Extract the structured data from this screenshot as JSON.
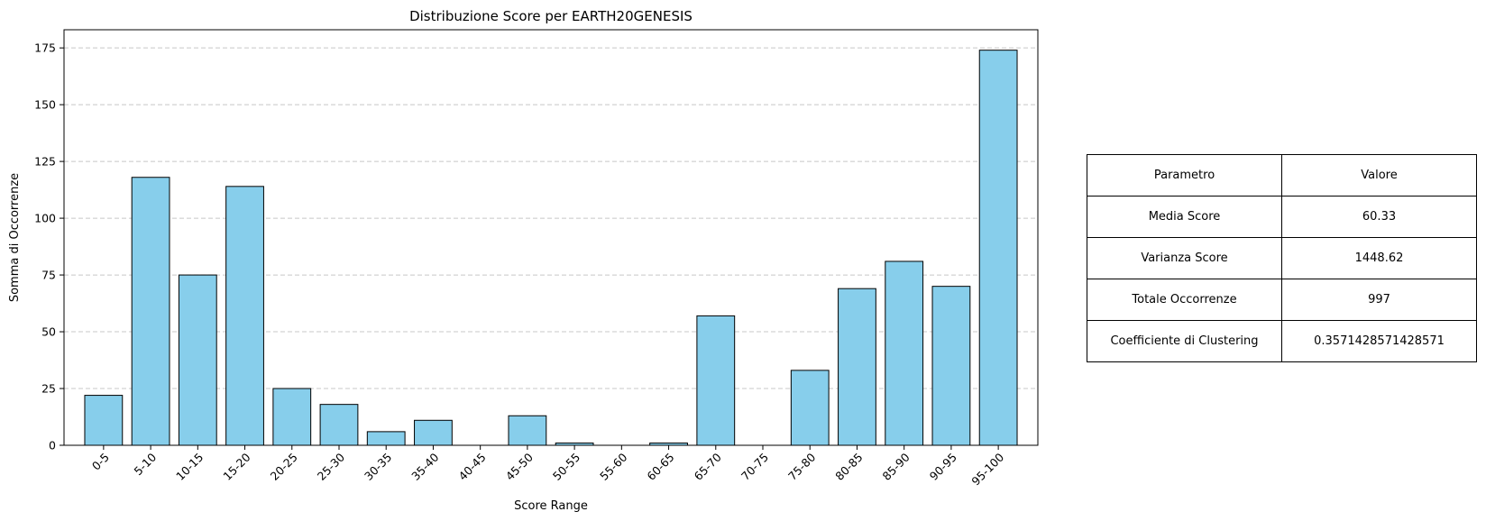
{
  "chart_data": {
    "type": "bar",
    "title": "Distribuzione Score per EARTH20GENESIS",
    "xlabel": "Score Range",
    "ylabel": "Somma di Occorrenze",
    "categories": [
      "0-5",
      "5-10",
      "10-15",
      "15-20",
      "20-25",
      "25-30",
      "30-35",
      "35-40",
      "40-45",
      "45-50",
      "50-55",
      "55-60",
      "60-65",
      "65-70",
      "70-75",
      "75-80",
      "80-85",
      "85-90",
      "90-95",
      "95-100"
    ],
    "values": [
      22,
      118,
      75,
      114,
      25,
      18,
      6,
      11,
      0,
      13,
      1,
      0,
      1,
      57,
      0,
      33,
      69,
      81,
      70,
      174
    ],
    "ylim": [
      0,
      183
    ],
    "yticks": [
      0,
      25,
      50,
      75,
      100,
      125,
      150,
      175
    ],
    "grid": "y-dashed",
    "bar_color": "#87ceeb",
    "edge_color": "#000000"
  },
  "table": {
    "header": [
      "Parametro",
      "Valore"
    ],
    "rows": [
      [
        "Media Score",
        "60.33"
      ],
      [
        "Varianza Score",
        "1448.62"
      ],
      [
        "Totale Occorrenze",
        "997"
      ],
      [
        "Coefficiente di Clustering",
        "0.3571428571428571"
      ]
    ]
  }
}
